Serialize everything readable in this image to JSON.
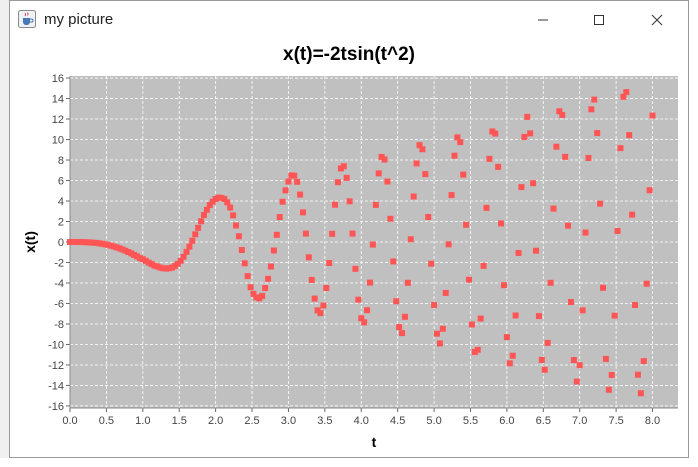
{
  "window": {
    "title": "my picture",
    "icons": {
      "app": "java-cup-icon",
      "minimize": "minimize-icon",
      "maximize": "maximize-icon",
      "close": "close-icon"
    }
  },
  "colors": {
    "plot_bg": "#c0c0c0",
    "marker": "#ff5555",
    "grid": "#ffffff"
  },
  "chart_data": {
    "type": "scatter",
    "title": "x(t)=-2tsin(t^2)",
    "xlabel": "t",
    "ylabel": "x(t)",
    "xlim": [
      0,
      8.35
    ],
    "ylim": [
      -16.2,
      16.2
    ],
    "xticks": [
      0,
      0.5,
      1,
      1.5,
      2,
      2.5,
      3,
      3.5,
      4,
      4.5,
      5,
      5.5,
      6,
      6.5,
      7,
      7.5,
      8
    ],
    "xtick_labels": [
      "0.0",
      "0.5",
      "1.0",
      "1.5",
      "2.0",
      "2.5",
      "3.0",
      "3.5",
      "4.0",
      "4.5",
      "5.0",
      "5.5",
      "6.0",
      "6.5",
      "7.0",
      "7.5",
      "8.0"
    ],
    "yticks": [
      16,
      14,
      12,
      10,
      8,
      6,
      4,
      2,
      0,
      -2,
      -4,
      -6,
      -8,
      -10,
      -12,
      -14,
      -16
    ],
    "ytick_labels": [
      "16",
      "14",
      "12",
      "10",
      "8",
      "6",
      "4",
      "2",
      "0",
      "-2",
      "-4",
      "-6",
      "-8",
      "-10",
      "-12",
      "-14",
      "-16"
    ],
    "grid": true,
    "marker": "square",
    "series": [
      {
        "points": [
          [
            0,
            0
          ],
          [
            0.04,
            0
          ],
          [
            0.08,
            0
          ],
          [
            0.12,
            0
          ],
          [
            0.16,
            -0.01
          ],
          [
            0.2,
            -0.02
          ],
          [
            0.24,
            -0.03
          ],
          [
            0.28,
            -0.04
          ],
          [
            0.32,
            -0.07
          ],
          [
            0.36,
            -0.09
          ],
          [
            0.4,
            -0.13
          ],
          [
            0.44,
            -0.17
          ],
          [
            0.48,
            -0.22
          ],
          [
            0.52,
            -0.28
          ],
          [
            0.56,
            -0.35
          ],
          [
            0.6,
            -0.43
          ],
          [
            0.64,
            -0.52
          ],
          [
            0.68,
            -0.62
          ],
          [
            0.72,
            -0.73
          ],
          [
            0.76,
            -0.85
          ],
          [
            0.8,
            -0.98
          ],
          [
            0.84,
            -1.11
          ],
          [
            0.88,
            -1.26
          ],
          [
            0.92,
            -1.41
          ],
          [
            0.96,
            -1.57
          ],
          [
            1,
            -1.68
          ],
          [
            1.04,
            -1.84
          ],
          [
            1.08,
            -2.01
          ],
          [
            1.12,
            -2.16
          ],
          [
            1.16,
            -2.31
          ],
          [
            1.2,
            -2.39
          ],
          [
            1.24,
            -2.5
          ],
          [
            1.28,
            -2.56
          ],
          [
            1.32,
            -2.6
          ],
          [
            1.36,
            -2.56
          ],
          [
            1.4,
            -2.5
          ],
          [
            1.44,
            -2.35
          ],
          [
            1.48,
            -2.13
          ],
          [
            1.52,
            -1.83
          ],
          [
            1.56,
            -1.45
          ],
          [
            1.6,
            -0.97
          ],
          [
            1.64,
            -0.45
          ],
          [
            1.68,
            0.12
          ],
          [
            1.72,
            0.75
          ],
          [
            1.76,
            1.38
          ],
          [
            1.8,
            2.02
          ],
          [
            1.84,
            2.63
          ],
          [
            1.88,
            3.14
          ],
          [
            1.92,
            3.6
          ],
          [
            1.96,
            3.94
          ],
          [
            2,
            4.2
          ],
          [
            2.04,
            4.33
          ],
          [
            2.08,
            4.31
          ],
          [
            2.12,
            4.2
          ],
          [
            2.16,
            3.87
          ],
          [
            2.2,
            3.36
          ],
          [
            2.24,
            2.6
          ],
          [
            2.28,
            1.61
          ],
          [
            2.32,
            0.56
          ],
          [
            2.36,
            -0.78
          ],
          [
            2.4,
            -2.08
          ],
          [
            2.44,
            -3.33
          ],
          [
            2.48,
            -4.41
          ],
          [
            2.52,
            -5.07
          ],
          [
            2.56,
            -5.41
          ],
          [
            2.6,
            -5.5
          ],
          [
            2.64,
            -5.26
          ],
          [
            2.68,
            -4.49
          ],
          [
            2.72,
            -3.59
          ],
          [
            2.76,
            -2.39
          ],
          [
            2.8,
            -0.83
          ],
          [
            2.84,
            0.7
          ],
          [
            2.88,
            2.43
          ],
          [
            2.92,
            3.93
          ],
          [
            2.96,
            5.04
          ],
          [
            3,
            5.9
          ],
          [
            3.04,
            6.5
          ],
          [
            3.08,
            6.47
          ],
          [
            3.12,
            5.87
          ],
          [
            3.16,
            4.63
          ],
          [
            3.2,
            2.89
          ],
          [
            3.24,
            0.82
          ],
          [
            3.28,
            -1.5
          ],
          [
            3.32,
            -3.7
          ],
          [
            3.36,
            -5.52
          ],
          [
            3.4,
            -6.67
          ],
          [
            3.44,
            -6.94
          ],
          [
            3.48,
            -6.2
          ],
          [
            3.52,
            -4.49
          ],
          [
            3.56,
            -2.05
          ],
          [
            3.6,
            0.8
          ],
          [
            3.64,
            3.64
          ],
          [
            3.68,
            5.84
          ],
          [
            3.72,
            7.18
          ],
          [
            3.76,
            7.39
          ],
          [
            3.8,
            6.26
          ],
          [
            3.84,
            3.97
          ],
          [
            3.88,
            0.82
          ],
          [
            3.92,
            -2.62
          ],
          [
            3.96,
            -5.63
          ],
          [
            4,
            -7.44
          ],
          [
            4.04,
            -7.84
          ],
          [
            4.08,
            -6.66
          ],
          [
            4.12,
            -3.96
          ],
          [
            4.16,
            -0.25
          ],
          [
            4.2,
            3.62
          ],
          [
            4.24,
            6.7
          ],
          [
            4.28,
            8.3
          ],
          [
            4.32,
            8.05
          ],
          [
            4.36,
            5.9
          ],
          [
            4.4,
            2.27
          ],
          [
            4.44,
            -1.9
          ],
          [
            4.48,
            -5.78
          ],
          [
            4.52,
            -8.3
          ],
          [
            4.56,
            -8.89
          ],
          [
            4.6,
            -7.3
          ],
          [
            4.64,
            -3.98
          ],
          [
            4.68,
            0.27
          ],
          [
            4.72,
            4.44
          ],
          [
            4.76,
            7.67
          ],
          [
            4.8,
            9.45
          ],
          [
            4.84,
            9.05
          ],
          [
            4.88,
            6.63
          ],
          [
            4.92,
            2.44
          ],
          [
            4.96,
            -2.12
          ],
          [
            5,
            -6.15
          ],
          [
            5.04,
            -8.95
          ],
          [
            5.08,
            -9.9
          ],
          [
            5.12,
            -8.47
          ],
          [
            5.16,
            -4.97
          ],
          [
            5.2,
            -0.23
          ],
          [
            5.24,
            4.58
          ],
          [
            5.28,
            8.42
          ],
          [
            5.32,
            10.21
          ],
          [
            5.36,
            9.75
          ],
          [
            5.4,
            6.58
          ],
          [
            5.44,
            1.68
          ],
          [
            5.48,
            -3.68
          ],
          [
            5.52,
            -8.05
          ],
          [
            5.56,
            -10.73
          ],
          [
            5.6,
            -10.52
          ],
          [
            5.64,
            -7.47
          ],
          [
            5.68,
            -2.33
          ],
          [
            5.72,
            3.33
          ],
          [
            5.76,
            8.11
          ],
          [
            5.8,
            10.79
          ],
          [
            5.84,
            10.58
          ],
          [
            5.88,
            7.33
          ],
          [
            5.92,
            1.81
          ],
          [
            5.96,
            -4.21
          ],
          [
            6,
            -9.28
          ],
          [
            6.04,
            -11.84
          ],
          [
            6.08,
            -11.1
          ],
          [
            6.12,
            -7.17
          ],
          [
            6.16,
            -1.07
          ],
          [
            6.2,
            5.36
          ],
          [
            6.24,
            10.25
          ],
          [
            6.28,
            12.21
          ],
          [
            6.32,
            10.6
          ],
          [
            6.36,
            5.74
          ],
          [
            6.4,
            -0.85
          ],
          [
            6.44,
            -7.23
          ],
          [
            6.48,
            -11.51
          ],
          [
            6.52,
            -12.47
          ],
          [
            6.56,
            -9.85
          ],
          [
            6.6,
            -3.98
          ],
          [
            6.64,
            3.26
          ],
          [
            6.68,
            9.3
          ],
          [
            6.72,
            12.76
          ],
          [
            6.76,
            12.4
          ],
          [
            6.8,
            8.31
          ],
          [
            6.84,
            1.59
          ],
          [
            6.88,
            -5.86
          ],
          [
            6.92,
            -11.52
          ],
          [
            6.96,
            -13.62
          ],
          [
            7,
            -12.02
          ],
          [
            7.04,
            -6.67
          ],
          [
            7.08,
            0.92
          ],
          [
            7.12,
            8.2
          ],
          [
            7.16,
            12.95
          ],
          [
            7.2,
            13.9
          ],
          [
            7.24,
            10.63
          ],
          [
            7.28,
            3.74
          ],
          [
            7.32,
            -4.47
          ],
          [
            7.36,
            -11.41
          ],
          [
            7.4,
            -14.42
          ],
          [
            7.44,
            -12.98
          ],
          [
            7.48,
            -7.19
          ],
          [
            7.52,
            1.08
          ],
          [
            7.56,
            9.16
          ],
          [
            7.6,
            14.17
          ],
          [
            7.64,
            14.63
          ],
          [
            7.68,
            10.43
          ],
          [
            7.72,
            2.67
          ],
          [
            7.76,
            -6.15
          ],
          [
            7.8,
            -12.95
          ],
          [
            7.84,
            -14.76
          ],
          [
            7.88,
            -11.62
          ],
          [
            7.92,
            -4.07
          ],
          [
            7.96,
            5.05
          ],
          [
            8,
            12.34
          ]
        ]
      }
    ]
  }
}
